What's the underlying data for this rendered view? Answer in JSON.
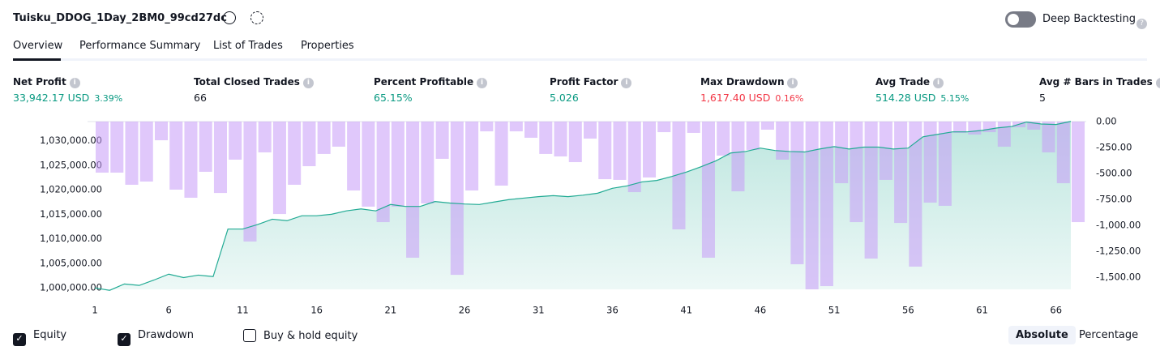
{
  "header": {
    "title": "Tuisku_DDOG_1Day_2BM0_99cd27dc",
    "toggle_label": "Deep Backtesting"
  },
  "tabs": [
    "Overview",
    "Performance Summary",
    "List of Trades",
    "Properties"
  ],
  "metrics": [
    {
      "label": "Net Profit",
      "value": "33,942.17 USD",
      "sub": "3.39%"
    },
    {
      "label": "Total Closed Trades",
      "value": "66"
    },
    {
      "label": "Percent Profitable",
      "value": "65.15%"
    },
    {
      "label": "Profit Factor",
      "value": "5.026"
    },
    {
      "label": "Max Drawdown",
      "value": "1,617.40 USD",
      "sub": "0.16%"
    },
    {
      "label": "Avg Trade",
      "value": "514.28 USD",
      "sub": "5.15%"
    },
    {
      "label": "Avg # Bars in Trades",
      "value": "5"
    }
  ],
  "chart_data": {
    "type": "bar-line",
    "x": [
      1,
      2,
      3,
      4,
      5,
      6,
      7,
      8,
      9,
      10,
      11,
      12,
      13,
      14,
      15,
      16,
      17,
      18,
      19,
      20,
      21,
      22,
      23,
      24,
      25,
      26,
      27,
      28,
      29,
      30,
      31,
      32,
      33,
      34,
      35,
      36,
      37,
      38,
      39,
      40,
      41,
      42,
      43,
      44,
      45,
      46,
      47,
      48,
      49,
      50,
      51,
      52,
      53,
      54,
      55,
      56,
      57,
      58,
      59,
      60,
      61,
      62,
      63,
      64,
      65,
      66,
      67
    ],
    "xlim": [
      1,
      67
    ],
    "xticks": [
      1,
      6,
      11,
      16,
      21,
      26,
      31,
      36,
      41,
      46,
      51,
      56,
      61,
      66
    ],
    "series": [
      {
        "name": "Equity",
        "color": "#22ab94",
        "values": [
          1000000,
          999500,
          1000800,
          1000500,
          1001600,
          1002800,
          1002100,
          1002600,
          1002300,
          1012000,
          1012000,
          1012900,
          1014000,
          1013700,
          1014700,
          1014700,
          1015000,
          1015700,
          1016100,
          1015700,
          1017000,
          1016600,
          1016600,
          1017600,
          1017300,
          1017100,
          1017000,
          1017500,
          1018000,
          1018300,
          1018600,
          1018800,
          1018600,
          1018900,
          1019300,
          1020300,
          1020800,
          1021600,
          1021900,
          1022700,
          1023600,
          1024700,
          1025900,
          1027500,
          1027800,
          1028500,
          1028000,
          1027800,
          1027700,
          1028300,
          1028800,
          1028300,
          1028700,
          1028700,
          1028300,
          1028500,
          1030800,
          1031300,
          1031800,
          1031800,
          1032100,
          1032600,
          1032900,
          1033800,
          1033400,
          1033300,
          1033942
        ]
      },
      {
        "name": "Drawdown",
        "color": "#c79af7",
        "axis": "y2",
        "values": [
          -492,
          -492,
          -609,
          -578,
          -180,
          -656,
          -734,
          -484,
          -688,
          -367,
          -1156,
          -297,
          -891,
          -609,
          -430,
          -312,
          -242,
          -664,
          -820,
          -969,
          -820,
          -1312,
          -789,
          -359,
          -1477,
          -664,
          -94,
          -617,
          -94,
          -156,
          -312,
          -336,
          -391,
          -164,
          -555,
          -562,
          -680,
          -539,
          -102,
          -1039,
          -109,
          -1312,
          -328,
          -672,
          -273,
          -78,
          -367,
          -1375,
          -1617,
          -1586,
          -594,
          -969,
          -1320,
          -562,
          -977,
          -1398,
          -781,
          -812,
          -109,
          -125,
          -102,
          -242,
          -55,
          -78,
          -297,
          -594,
          -969
        ]
      }
    ],
    "ylim": [
      999700,
      1033900
    ],
    "yticks": [
      {
        "value": 1000000,
        "label": "1,000,000.00"
      },
      {
        "value": 1005000,
        "label": "1,005,000.00"
      },
      {
        "value": 1010000,
        "label": "1,010,000.00"
      },
      {
        "value": 1015000,
        "label": "1,015,000.00"
      },
      {
        "value": 1020000,
        "label": "1,020,000.00"
      },
      {
        "value": 1025000,
        "label": "1,025,000.00"
      },
      {
        "value": 1030000,
        "label": "1,030,000.00"
      }
    ],
    "y2lim": [
      -1617,
      0
    ],
    "y2ticks": [
      {
        "value": 0,
        "label": "0.00"
      },
      {
        "value": -250,
        "label": "-250.00"
      },
      {
        "value": -500,
        "label": "-500.00"
      },
      {
        "value": -750,
        "label": "-750.00"
      },
      {
        "value": -1000,
        "label": "-1,000.00"
      },
      {
        "value": -1250,
        "label": "-1,250.00"
      },
      {
        "value": -1500,
        "label": "-1,500.00"
      }
    ]
  },
  "legend": [
    {
      "label": "Equity",
      "checked": true
    },
    {
      "label": "Drawdown",
      "checked": true
    },
    {
      "label": "Buy & hold equity",
      "checked": false
    }
  ],
  "buttons": [
    "Absolute",
    "Percentage"
  ]
}
